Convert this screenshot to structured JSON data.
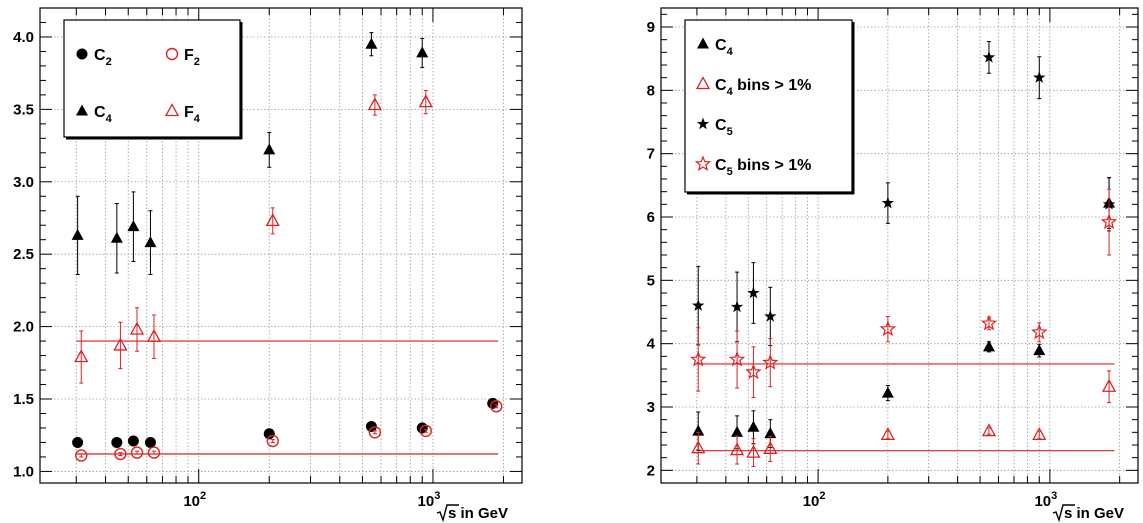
{
  "chart_data": [
    {
      "type": "scatter",
      "xscale": "log",
      "xlim": [
        21,
        2400
      ],
      "ylim": [
        0.92,
        4.2
      ],
      "ylabel": "",
      "xlabel": {
        "root": "s",
        "suffix": " in GeV"
      },
      "y_ticks": [
        1.0,
        1.5,
        2.0,
        2.5,
        3.0,
        3.5,
        4.0
      ],
      "y_tick_labels": [
        "1.0",
        "1.5",
        "2.0",
        "2.5",
        "3.0",
        "3.5",
        "4.0"
      ],
      "x_ticks": [
        {
          "value": 100,
          "base": "10",
          "exp": "2"
        },
        {
          "value": 1000,
          "base": "10",
          "exp": "3"
        }
      ],
      "grid": true,
      "legend": {
        "placement": "top-left",
        "entries": [
          {
            "marker": "circle-filled",
            "color": "#000000",
            "label": "C",
            "sub": "2"
          },
          {
            "marker": "circle-open",
            "color": "#dd2222",
            "label": "F",
            "sub": "2"
          },
          {
            "marker": "triangle-filled",
            "color": "#000000",
            "label": "C",
            "sub": "4"
          },
          {
            "marker": "triangle-open",
            "color": "#dd2222",
            "label": "F",
            "sub": "4"
          }
        ]
      },
      "reference_lines": [
        {
          "y": 1.9,
          "x": [
            30,
            1900
          ],
          "color": "#dd2222"
        },
        {
          "y": 1.12,
          "x": [
            30,
            1900
          ],
          "color": "#dd2222"
        }
      ],
      "series": [
        {
          "marker": "circle-filled",
          "color": "#000000",
          "x": [
            30.4,
            44.7,
            52.6,
            62.2,
            200,
            546,
            900,
            1800
          ],
          "y": [
            1.2,
            1.2,
            1.21,
            1.2,
            1.26,
            1.31,
            1.3,
            1.47
          ],
          "err": [
            0.01,
            0.01,
            0.01,
            0.01,
            0.01,
            0.01,
            0.01,
            0.01
          ]
        },
        {
          "marker": "circle-open",
          "color": "#dd2222",
          "x": [
            31.5,
            46.3,
            54.5,
            64.4,
            207,
            565,
            932,
            1864
          ],
          "y": [
            1.11,
            1.12,
            1.13,
            1.13,
            1.21,
            1.27,
            1.28,
            1.45
          ],
          "err": [
            0.01,
            0.01,
            0.01,
            0.01,
            0.01,
            0.01,
            0.01,
            0.01
          ]
        },
        {
          "marker": "triangle-filled",
          "color": "#000000",
          "x": [
            30.4,
            44.7,
            52.6,
            62.2,
            200,
            546,
            900
          ],
          "y": [
            2.63,
            2.61,
            2.69,
            2.58,
            3.22,
            3.95,
            3.89
          ],
          "err": [
            0.27,
            0.24,
            0.24,
            0.22,
            0.12,
            0.08,
            0.1
          ]
        },
        {
          "marker": "triangle-open",
          "color": "#dd2222",
          "x": [
            31.5,
            46.3,
            54.5,
            64.4,
            207,
            565,
            932
          ],
          "y": [
            1.79,
            1.87,
            1.98,
            1.93,
            2.73,
            3.53,
            3.55
          ],
          "err": [
            0.18,
            0.16,
            0.15,
            0.15,
            0.09,
            0.07,
            0.08
          ]
        }
      ]
    },
    {
      "type": "scatter",
      "xscale": "log",
      "xlim": [
        21,
        2400
      ],
      "ylim": [
        1.8,
        9.3
      ],
      "ylabel": "",
      "xlabel": {
        "root": "s",
        "suffix": " in GeV"
      },
      "y_ticks": [
        2,
        3,
        4,
        5,
        6,
        7,
        8,
        9
      ],
      "y_tick_labels": [
        "2",
        "3",
        "4",
        "5",
        "6",
        "7",
        "8",
        "9"
      ],
      "x_ticks": [
        {
          "value": 100,
          "base": "10",
          "exp": "2"
        },
        {
          "value": 1000,
          "base": "10",
          "exp": "3"
        }
      ],
      "grid": true,
      "legend": {
        "placement": "top-left",
        "entries": [
          {
            "marker": "triangle-filled",
            "color": "#000000",
            "label": "C",
            "sub": "4",
            "suffix": ""
          },
          {
            "marker": "triangle-open",
            "color": "#dd2222",
            "label": "C",
            "sub": "4",
            "suffix": " bins > 1%"
          },
          {
            "marker": "star-filled",
            "color": "#000000",
            "label": "C",
            "sub": "5",
            "suffix": ""
          },
          {
            "marker": "star-open",
            "color": "#dd2222",
            "label": "C",
            "sub": "5",
            "suffix": " bins > 1%"
          }
        ]
      },
      "reference_lines": [
        {
          "y": 3.68,
          "x": [
            30,
            1900
          ],
          "color": "#dd2222"
        },
        {
          "y": 2.31,
          "x": [
            30,
            1900
          ],
          "color": "#dd2222"
        }
      ],
      "series": [
        {
          "marker": "triangle-filled",
          "color": "#000000",
          "x": [
            30.4,
            44.7,
            52.6,
            62.2,
            200,
            546,
            900,
            1800
          ],
          "y": [
            2.62,
            2.6,
            2.68,
            2.58,
            3.22,
            3.95,
            3.89,
            6.22
          ],
          "err": [
            0.3,
            0.26,
            0.26,
            0.22,
            0.12,
            0.08,
            0.1,
            0.4
          ]
        },
        {
          "marker": "triangle-open",
          "color": "#dd2222",
          "x": [
            30.4,
            44.7,
            52.6,
            62.2,
            200,
            546,
            900,
            1800
          ],
          "y": [
            2.35,
            2.32,
            2.28,
            2.34,
            2.56,
            2.62,
            2.56,
            3.32
          ],
          "err": [
            0.25,
            0.22,
            0.22,
            0.2,
            0.06,
            0.05,
            0.06,
            0.25
          ]
        },
        {
          "marker": "star-filled",
          "color": "#000000",
          "x": [
            30.4,
            44.7,
            52.6,
            62.2,
            200,
            546,
            900,
            1800
          ],
          "y": [
            4.6,
            4.58,
            4.8,
            4.43,
            6.22,
            8.52,
            8.2,
            6.2
          ],
          "err": [
            0.62,
            0.55,
            0.48,
            0.46,
            0.32,
            0.25,
            0.33,
            0.42
          ]
        },
        {
          "marker": "star-open",
          "color": "#dd2222",
          "x": [
            30.4,
            44.7,
            52.6,
            62.2,
            200,
            546,
            900,
            1800
          ],
          "y": [
            3.75,
            3.75,
            3.55,
            3.7,
            4.23,
            4.32,
            4.18,
            5.92
          ],
          "err": [
            0.5,
            0.45,
            0.4,
            0.38,
            0.2,
            0.1,
            0.15,
            0.52
          ]
        }
      ]
    }
  ]
}
